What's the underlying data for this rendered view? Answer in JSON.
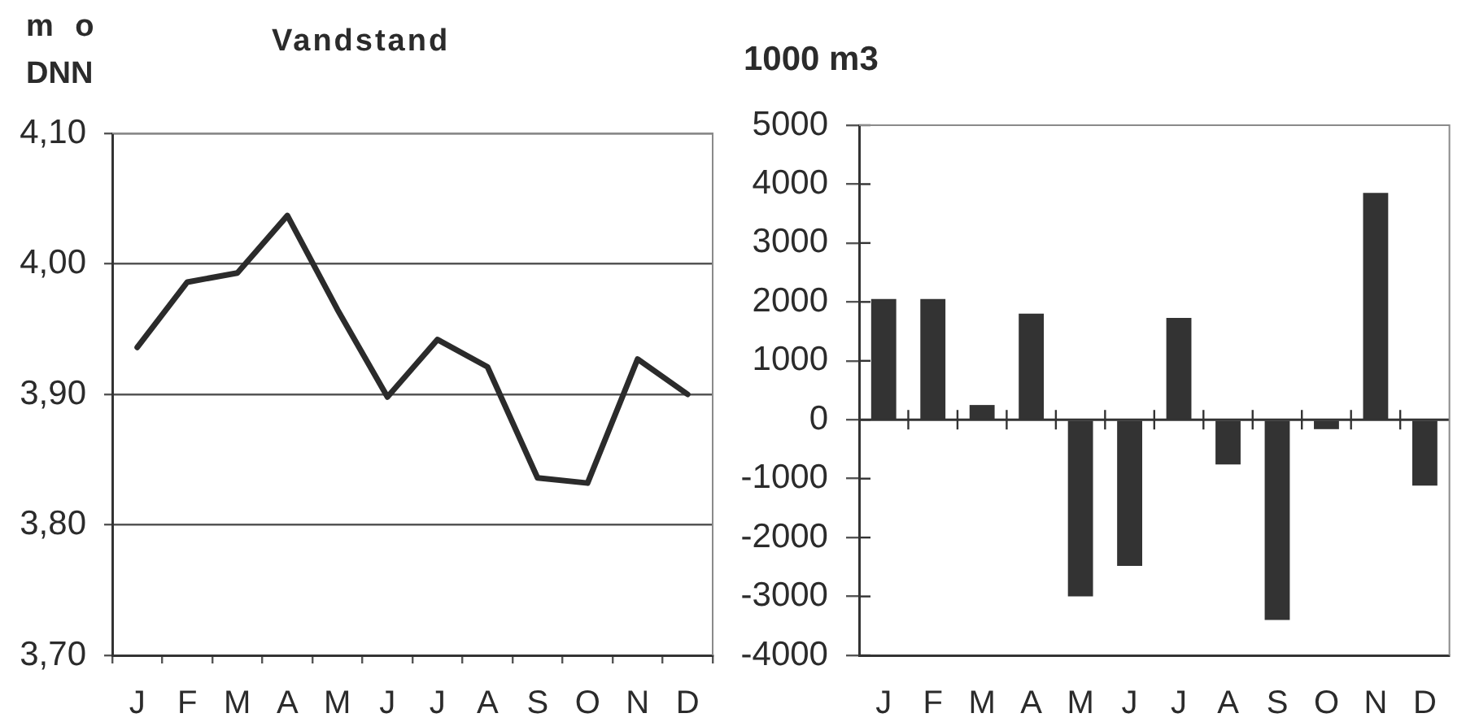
{
  "chart_data": [
    {
      "type": "line",
      "title": "Vandstand",
      "ylabel": "m o DNN",
      "categories": [
        "J",
        "F",
        "M",
        "A",
        "M",
        "J",
        "J",
        "A",
        "S",
        "O",
        "N",
        "D"
      ],
      "values": [
        3.936,
        3.986,
        3.993,
        4.037,
        3.965,
        3.898,
        3.942,
        3.921,
        3.836,
        3.832,
        3.927,
        3.9
      ],
      "color": "#2b2b2b",
      "ylim": [
        3.7,
        4.1
      ],
      "yticks": [
        {
          "value": 3.7,
          "label": "3,70"
        },
        {
          "value": 3.8,
          "label": "3,80"
        },
        {
          "value": 3.9,
          "label": "3,90"
        },
        {
          "value": 4.0,
          "label": "4,00"
        },
        {
          "value": 4.1,
          "label": "4,10"
        }
      ],
      "grid": "y",
      "marker": "none"
    },
    {
      "type": "bar",
      "ylabel": "1000 m3",
      "categories": [
        "J",
        "F",
        "M",
        "A",
        "M",
        "J",
        "J",
        "A",
        "S",
        "O",
        "N",
        "D"
      ],
      "values": [
        2050,
        2050,
        250,
        1800,
        -3000,
        -2480,
        1730,
        -760,
        -3400,
        -160,
        3850,
        -1120
      ],
      "color": "#333333",
      "ylim": [
        -4000,
        5000
      ],
      "yticks": [
        -4000,
        -3000,
        -2000,
        -1000,
        0,
        1000,
        2000,
        3000,
        4000,
        5000
      ]
    }
  ]
}
